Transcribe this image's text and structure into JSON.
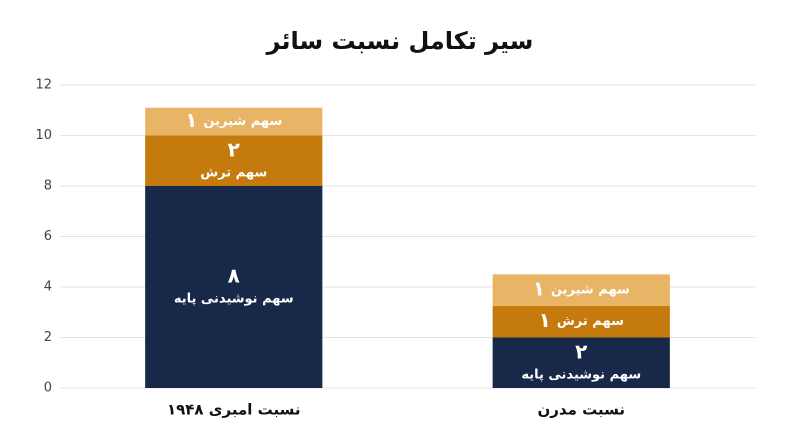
{
  "chart_data": {
    "type": "stacked_bar",
    "title": "سیر تکامل نسبت سائر",
    "categories": [
      "نسبت امبری ۱۹۴۸",
      "نسبت مدرن"
    ],
    "series": [
      {
        "name": "سهم نوشیدنی پایه",
        "color": "#172848",
        "values": [
          8,
          2
        ],
        "value_labels": [
          "۸",
          "۲"
        ]
      },
      {
        "name": "سهم ترش",
        "color": "#c47a0c",
        "values": [
          2,
          1.25
        ],
        "value_labels": [
          "۲",
          "۱"
        ]
      },
      {
        "name": "سهم شیرین",
        "color": "#e8b466",
        "values": [
          1.1,
          1.25
        ],
        "value_labels": [
          "۱",
          "۱"
        ]
      }
    ],
    "ylim": [
      0,
      12
    ],
    "yticks": [
      0,
      2,
      4,
      6,
      8,
      10,
      12
    ],
    "grid": true
  }
}
